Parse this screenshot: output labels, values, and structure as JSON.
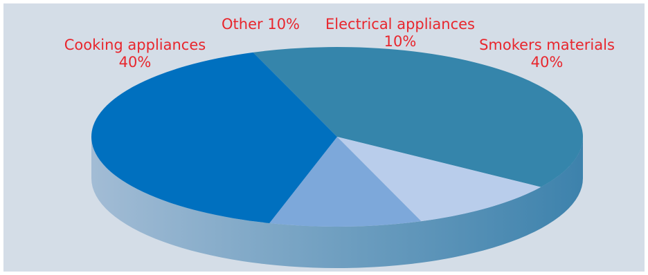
{
  "chart_data": {
    "type": "pie",
    "title": "",
    "legend": "none",
    "slices": [
      {
        "label": "Cooking appliances",
        "value": 40,
        "value_label": "40%",
        "color": "#3585ab"
      },
      {
        "label": "Other",
        "value": 10,
        "value_label": "10%",
        "color": "#b9cdeb"
      },
      {
        "label": "Electrical appliances",
        "value": 10,
        "value_label": "10%",
        "color": "#7da8da"
      },
      {
        "label": "Smokers materials",
        "value": 40,
        "value_label": "40%",
        "color": "#0070bf"
      }
    ],
    "side_color_light": "#a2bcd5",
    "side_color_dark": "#3d82ac"
  }
}
